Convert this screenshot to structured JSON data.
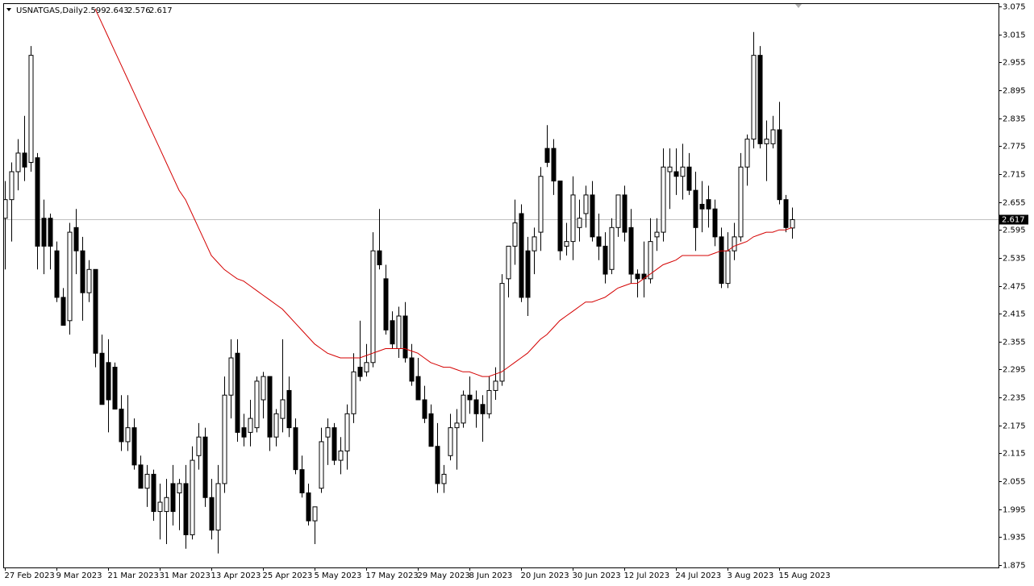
{
  "chart_data": {
    "type": "candlestick",
    "title": "USNATGAS,Daily",
    "up_color": "#ffffff",
    "down_color": "#000000",
    "price_line_color": "#c0c0c0",
    "ylim": [
      1.875,
      3.075
    ],
    "yticks": [
      3.075,
      3.015,
      2.955,
      2.895,
      2.835,
      2.775,
      2.715,
      2.655,
      2.595,
      2.535,
      2.475,
      2.415,
      2.355,
      2.295,
      2.235,
      2.175,
      2.115,
      2.055,
      1.995,
      1.935,
      1.875
    ],
    "categories": [
      "27 Feb 2023",
      null,
      null,
      null,
      null,
      null,
      null,
      null,
      "9 Mar 2023",
      null,
      null,
      null,
      null,
      null,
      null,
      null,
      "21 Mar 2023",
      null,
      null,
      null,
      null,
      null,
      null,
      null,
      "31 Mar 2023",
      null,
      null,
      null,
      null,
      null,
      null,
      null,
      "13 Apr 2023",
      null,
      null,
      null,
      null,
      null,
      null,
      null,
      "25 Apr 2023",
      null,
      null,
      null,
      null,
      null,
      null,
      null,
      "5 May 2023",
      null,
      null,
      null,
      null,
      null,
      null,
      null,
      "17 May 2023",
      null,
      null,
      null,
      null,
      null,
      null,
      null,
      "29 May 2023",
      null,
      null,
      null,
      null,
      null,
      null,
      null,
      "8 Jun 2023",
      null,
      null,
      null,
      null,
      null,
      null,
      null,
      "20 Jun 2023",
      null,
      null,
      null,
      null,
      null,
      null,
      null,
      "30 Jun 2023",
      null,
      null,
      null,
      null,
      null,
      null,
      null,
      "12 Jul 2023",
      null,
      null,
      null,
      null,
      null,
      null,
      null,
      "24 Jul 2023",
      null,
      null,
      null,
      null,
      null,
      null,
      null,
      "3 Aug 2023",
      null,
      null,
      null,
      null,
      null,
      null,
      null,
      "15 Aug 2023",
      null,
      null
    ],
    "ohlc": [
      [
        2.62,
        2.7,
        2.51,
        2.66
      ],
      [
        2.66,
        2.74,
        2.57,
        2.72
      ],
      [
        2.72,
        2.79,
        2.68,
        2.76
      ],
      [
        2.76,
        2.84,
        2.7,
        2.73
      ],
      [
        2.74,
        2.99,
        2.72,
        2.97
      ],
      [
        2.75,
        2.76,
        2.51,
        2.56
      ],
      [
        2.62,
        2.66,
        2.5,
        2.56
      ],
      [
        2.62,
        2.63,
        2.51,
        2.56
      ],
      [
        2.55,
        2.57,
        2.44,
        2.45
      ],
      [
        2.45,
        2.47,
        2.39,
        2.39
      ],
      [
        2.4,
        2.61,
        2.37,
        2.59
      ],
      [
        2.6,
        2.64,
        2.5,
        2.55
      ],
      [
        2.55,
        2.58,
        2.4,
        2.46
      ],
      [
        2.46,
        2.53,
        2.44,
        2.51
      ],
      [
        2.51,
        2.51,
        2.3,
        2.33
      ],
      [
        2.33,
        2.37,
        2.22,
        2.22
      ],
      [
        2.31,
        2.36,
        2.16,
        2.23
      ],
      [
        2.3,
        2.31,
        2.21,
        2.21
      ],
      [
        2.21,
        2.24,
        2.12,
        2.14
      ],
      [
        2.14,
        2.24,
        2.12,
        2.17
      ],
      [
        2.17,
        2.19,
        2.08,
        2.09
      ],
      [
        2.09,
        2.11,
        2.04,
        2.04
      ],
      [
        2.04,
        2.09,
        2.0,
        2.07
      ],
      [
        2.07,
        2.08,
        1.97,
        1.99
      ],
      [
        1.99,
        2.05,
        1.93,
        2.01
      ],
      [
        1.99,
        2.06,
        1.92,
        2.02
      ],
      [
        2.05,
        2.09,
        1.96,
        1.99
      ],
      [
        2.03,
        2.06,
        1.95,
        2.05
      ],
      [
        2.05,
        2.09,
        1.91,
        1.94
      ],
      [
        1.94,
        2.13,
        1.93,
        2.1
      ],
      [
        2.11,
        2.18,
        2.08,
        2.15
      ],
      [
        2.15,
        2.17,
        2.0,
        2.02
      ],
      [
        2.02,
        2.06,
        1.93,
        1.95
      ],
      [
        1.95,
        2.09,
        1.9,
        2.05
      ],
      [
        2.05,
        2.28,
        2.03,
        2.24
      ],
      [
        2.24,
        2.36,
        2.19,
        2.32
      ],
      [
        2.33,
        2.36,
        2.14,
        2.16
      ],
      [
        2.17,
        2.2,
        2.13,
        2.15
      ],
      [
        2.16,
        2.23,
        2.13,
        2.19
      ],
      [
        2.17,
        2.28,
        2.16,
        2.27
      ],
      [
        2.23,
        2.29,
        2.19,
        2.28
      ],
      [
        2.28,
        2.28,
        2.12,
        2.15
      ],
      [
        2.15,
        2.21,
        2.13,
        2.2
      ],
      [
        2.19,
        2.36,
        2.16,
        2.23
      ],
      [
        2.25,
        2.28,
        2.15,
        2.17
      ],
      [
        2.17,
        2.19,
        2.07,
        2.08
      ],
      [
        2.08,
        2.11,
        2.02,
        2.03
      ],
      [
        2.03,
        2.05,
        1.96,
        1.97
      ],
      [
        1.97,
        2.0,
        1.92,
        2.0
      ],
      [
        2.04,
        2.17,
        2.03,
        2.14
      ],
      [
        2.15,
        2.19,
        2.09,
        2.17
      ],
      [
        2.17,
        2.18,
        2.09,
        2.1
      ],
      [
        2.1,
        2.15,
        2.07,
        2.12
      ],
      [
        2.12,
        2.22,
        2.08,
        2.2
      ],
      [
        2.2,
        2.33,
        2.18,
        2.29
      ],
      [
        2.3,
        2.4,
        2.27,
        2.28
      ],
      [
        2.29,
        2.35,
        2.28,
        2.31
      ],
      [
        2.31,
        2.59,
        2.3,
        2.55
      ],
      [
        2.55,
        2.64,
        2.51,
        2.52
      ],
      [
        2.49,
        2.52,
        2.37,
        2.38
      ],
      [
        2.4,
        2.42,
        2.34,
        2.35
      ],
      [
        2.34,
        2.43,
        2.32,
        2.41
      ],
      [
        2.41,
        2.44,
        2.31,
        2.32
      ],
      [
        2.32,
        2.35,
        2.26,
        2.27
      ],
      [
        2.28,
        2.32,
        2.23,
        2.23
      ],
      [
        2.23,
        2.26,
        2.18,
        2.19
      ],
      [
        2.2,
        2.22,
        2.13,
        2.13
      ],
      [
        2.13,
        2.18,
        2.03,
        2.05
      ],
      [
        2.05,
        2.09,
        2.03,
        2.07
      ],
      [
        2.11,
        2.2,
        2.1,
        2.17
      ],
      [
        2.17,
        2.21,
        2.08,
        2.18
      ],
      [
        2.18,
        2.25,
        2.17,
        2.24
      ],
      [
        2.24,
        2.28,
        2.2,
        2.23
      ],
      [
        2.23,
        2.25,
        2.17,
        2.2
      ],
      [
        2.22,
        2.24,
        2.14,
        2.2
      ],
      [
        2.2,
        2.28,
        2.19,
        2.25
      ],
      [
        2.25,
        2.3,
        2.23,
        2.27
      ],
      [
        2.27,
        2.5,
        2.26,
        2.48
      ],
      [
        2.49,
        2.56,
        2.45,
        2.56
      ],
      [
        2.56,
        2.66,
        2.52,
        2.61
      ],
      [
        2.63,
        2.65,
        2.44,
        2.45
      ],
      [
        2.55,
        2.58,
        2.41,
        2.45
      ],
      [
        2.55,
        2.6,
        2.5,
        2.58
      ],
      [
        2.59,
        2.73,
        2.55,
        2.71
      ],
      [
        2.77,
        2.82,
        2.73,
        2.74
      ],
      [
        2.77,
        2.79,
        2.67,
        2.7
      ],
      [
        2.7,
        2.7,
        2.53,
        2.55
      ],
      [
        2.56,
        2.61,
        2.54,
        2.57
      ],
      [
        2.57,
        2.71,
        2.53,
        2.67
      ],
      [
        2.6,
        2.66,
        2.57,
        2.62
      ],
      [
        2.63,
        2.69,
        2.6,
        2.67
      ],
      [
        2.67,
        2.7,
        2.57,
        2.58
      ],
      [
        2.58,
        2.63,
        2.53,
        2.56
      ],
      [
        2.56,
        2.59,
        2.48,
        2.5
      ],
      [
        2.51,
        2.62,
        2.5,
        2.6
      ],
      [
        2.6,
        2.67,
        2.58,
        2.67
      ],
      [
        2.67,
        2.69,
        2.57,
        2.59
      ],
      [
        2.6,
        2.64,
        2.48,
        2.5
      ],
      [
        2.5,
        2.51,
        2.45,
        2.49
      ],
      [
        2.5,
        2.57,
        2.45,
        2.49
      ],
      [
        2.49,
        2.62,
        2.48,
        2.57
      ],
      [
        2.58,
        2.62,
        2.55,
        2.59
      ],
      [
        2.59,
        2.77,
        2.57,
        2.73
      ],
      [
        2.72,
        2.77,
        2.64,
        2.73
      ],
      [
        2.72,
        2.77,
        2.67,
        2.71
      ],
      [
        2.71,
        2.78,
        2.66,
        2.73
      ],
      [
        2.73,
        2.76,
        2.67,
        2.68
      ],
      [
        2.68,
        2.72,
        2.55,
        2.6
      ],
      [
        2.65,
        2.7,
        2.59,
        2.64
      ],
      [
        2.66,
        2.69,
        2.6,
        2.64
      ],
      [
        2.64,
        2.66,
        2.56,
        2.58
      ],
      [
        2.58,
        2.6,
        2.47,
        2.48
      ],
      [
        2.48,
        2.59,
        2.47,
        2.55
      ],
      [
        2.55,
        2.61,
        2.53,
        2.58
      ],
      [
        2.58,
        2.76,
        2.57,
        2.73
      ],
      [
        2.73,
        2.8,
        2.69,
        2.79
      ],
      [
        2.79,
        3.02,
        2.77,
        2.97
      ],
      [
        2.97,
        2.99,
        2.77,
        2.78
      ],
      [
        2.78,
        2.83,
        2.7,
        2.79
      ],
      [
        2.78,
        2.84,
        2.77,
        2.81
      ],
      [
        2.81,
        2.87,
        2.65,
        2.66
      ],
      [
        2.66,
        2.67,
        2.59,
        2.6
      ],
      [
        2.599,
        2.643,
        2.576,
        2.617
      ]
    ],
    "ma": {
      "color": "#d40000",
      "values": [
        null,
        null,
        null,
        null,
        null,
        null,
        null,
        null,
        null,
        null,
        null,
        null,
        null,
        null,
        3.07,
        3.04,
        3.01,
        2.98,
        2.95,
        2.92,
        2.89,
        2.86,
        2.83,
        2.8,
        2.77,
        2.74,
        2.71,
        2.68,
        2.66,
        2.63,
        2.6,
        2.57,
        2.54,
        2.525,
        2.51,
        2.5,
        2.49,
        2.485,
        2.475,
        2.465,
        2.455,
        2.445,
        2.435,
        2.425,
        2.41,
        2.395,
        2.38,
        2.365,
        2.35,
        2.34,
        2.33,
        2.325,
        2.32,
        2.32,
        2.32,
        2.32,
        2.325,
        2.33,
        2.335,
        2.34,
        2.34,
        2.34,
        2.34,
        2.335,
        2.33,
        2.32,
        2.31,
        2.305,
        2.3,
        2.3,
        2.295,
        2.29,
        2.29,
        2.285,
        2.28,
        2.28,
        2.285,
        2.29,
        2.3,
        2.31,
        2.32,
        2.33,
        2.345,
        2.36,
        2.37,
        2.385,
        2.4,
        2.41,
        2.42,
        2.43,
        2.44,
        2.44,
        2.445,
        2.45,
        2.46,
        2.47,
        2.475,
        2.48,
        2.48,
        2.49,
        2.5,
        2.51,
        2.52,
        2.525,
        2.53,
        2.54,
        2.54,
        2.54,
        2.54,
        2.54,
        2.545,
        2.55,
        2.55,
        2.56,
        2.565,
        2.57,
        2.58,
        2.585,
        2.59,
        2.59,
        2.595,
        2.595,
        2.6
      ]
    }
  }
}
